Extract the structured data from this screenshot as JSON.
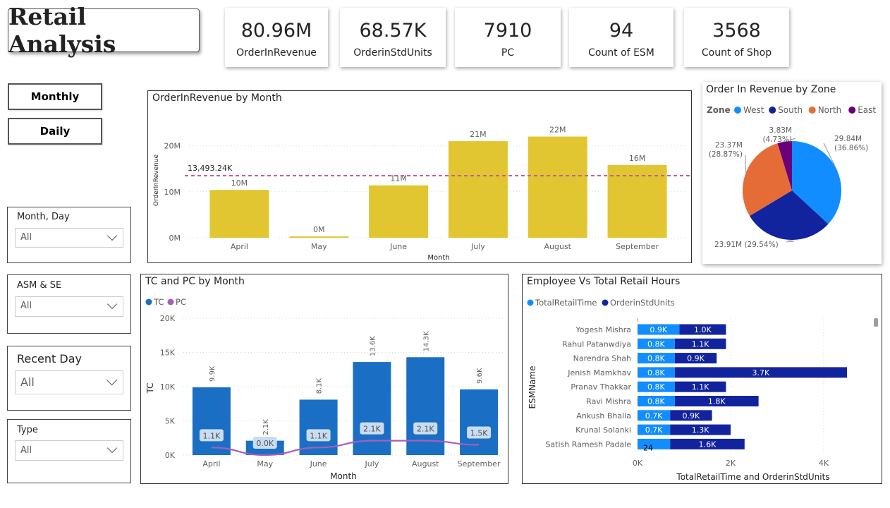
{
  "title": "Retail Analysis",
  "kpis": [
    {
      "value": "80.96M",
      "label": "OrderInRevenue"
    },
    {
      "value": "68.57K",
      "label": "OrderinStdUnits"
    },
    {
      "value": "7910",
      "label": "PC"
    },
    {
      "value": "94",
      "label": "Count of ESM"
    },
    {
      "value": "3568",
      "label": "Count of Shop"
    }
  ],
  "buttons": {
    "monthly": "Monthly",
    "daily": "Daily"
  },
  "slicers": [
    {
      "label": "Month, Day",
      "value": "All"
    },
    {
      "label": "ASM & SE",
      "value": "All"
    },
    {
      "label": "Recent Day",
      "value": "All"
    },
    {
      "label": "Type",
      "value": "All"
    }
  ],
  "chart_data": [
    {
      "type": "bar",
      "title": "OrderInRevenue by Month",
      "xlabel": "Month",
      "ylabel": "OrderInRevenue",
      "categories": [
        "April",
        "May",
        "June",
        "July",
        "August",
        "September"
      ],
      "values": [
        10.4,
        0.3,
        11.4,
        21.0,
        22.0,
        15.8
      ],
      "data_labels": [
        "10M",
        "0M",
        "11M",
        "21M",
        "22M",
        "16M"
      ],
      "y_ticks": [
        "0M",
        "10M",
        "20M"
      ],
      "ylim": [
        0,
        25
      ],
      "average_line": {
        "value": 13.49324,
        "label": "13,493.24K"
      },
      "colors": {
        "bar": "#E2C631",
        "average_line": "#C05FA0"
      },
      "grid": true
    },
    {
      "type": "pie",
      "title": "Order In Revenue by Zone",
      "legend_title": "Zone",
      "legend_position": "top",
      "series": [
        {
          "name": "West",
          "value": 29.84,
          "label": "29.84M",
          "pct": "(36.86%)",
          "color": "#118DFF"
        },
        {
          "name": "South",
          "value": 23.91,
          "label": "23.91M",
          "pct": "(29.54%)",
          "color": "#12239E"
        },
        {
          "name": "North",
          "value": 23.37,
          "label": "23.37M",
          "pct": "(28.87%)",
          "color": "#E66C37"
        },
        {
          "name": "East",
          "value": 3.83,
          "label": "3.83M",
          "pct": "(4.73%)",
          "color": "#6B007B"
        }
      ]
    },
    {
      "type": "bar",
      "title": "TC and PC by Month",
      "xlabel": "Month",
      "ylabel": "TC",
      "legend_position": "top-left",
      "categories": [
        "April",
        "May",
        "June",
        "July",
        "August",
        "September"
      ],
      "series": [
        {
          "name": "TC",
          "values": [
            9.9,
            2.1,
            8.1,
            13.6,
            14.3,
            9.6
          ],
          "labels": [
            "9.9K",
            "2.1K",
            "8.1K",
            "13.6K",
            "14.3K",
            "9.6K"
          ],
          "color": "#1A6FC4"
        },
        {
          "name": "PC",
          "values": [
            1.1,
            0.0,
            1.1,
            2.1,
            2.1,
            1.5
          ],
          "labels": [
            "1.1K",
            "0.0K",
            "1.1K",
            "2.1K",
            "2.1K",
            "1.5K"
          ],
          "color": "#A85DBE"
        }
      ],
      "y_ticks": [
        "0K",
        "5K",
        "10K",
        "15K",
        "20K"
      ],
      "ylim": [
        0,
        20
      ],
      "grid": true
    },
    {
      "type": "bar",
      "orientation": "horizontal",
      "stacked": true,
      "title": "Employee Vs Total Retail Hours",
      "xlabel": "TotalRetailTime and OrderinStdUnits",
      "ylabel": "ESMName",
      "legend_position": "top-left",
      "categories": [
        "Yogesh Mishra",
        "Rahul Patanwdiya",
        "Narendra Shah",
        "Jenish Mamkhav",
        "Pranav Thakkar",
        "Ravi Mishra",
        "Ankush Bhalla",
        "Krunal Solanki",
        "Satish Ramesh Padale"
      ],
      "series": [
        {
          "name": "TotalRetailTime",
          "values": [
            0.9,
            0.8,
            0.8,
            0.8,
            0.8,
            0.8,
            0.7,
            0.7,
            0.7
          ],
          "labels": [
            "0.9K",
            "0.8K",
            "0.8K",
            "0.8K",
            "0.8K",
            "0.8K",
            "0.7K",
            "0.7K",
            ""
          ],
          "color": "#118DFF"
        },
        {
          "name": "OrderinStdUnits",
          "values": [
            1.0,
            1.1,
            0.9,
            3.7,
            1.1,
            1.8,
            0.9,
            1.3,
            1.6
          ],
          "labels": [
            "1.0K",
            "1.1K",
            "0.9K",
            "3.7K",
            "1.1K",
            "1.8K",
            "0.9K",
            "1.3K",
            "1.6K"
          ],
          "color": "#12239E"
        }
      ],
      "extra_label": "24",
      "x_ticks": [
        "0K",
        "2K",
        "4K"
      ],
      "xlim": [
        0,
        4.8
      ],
      "grid": true
    }
  ]
}
